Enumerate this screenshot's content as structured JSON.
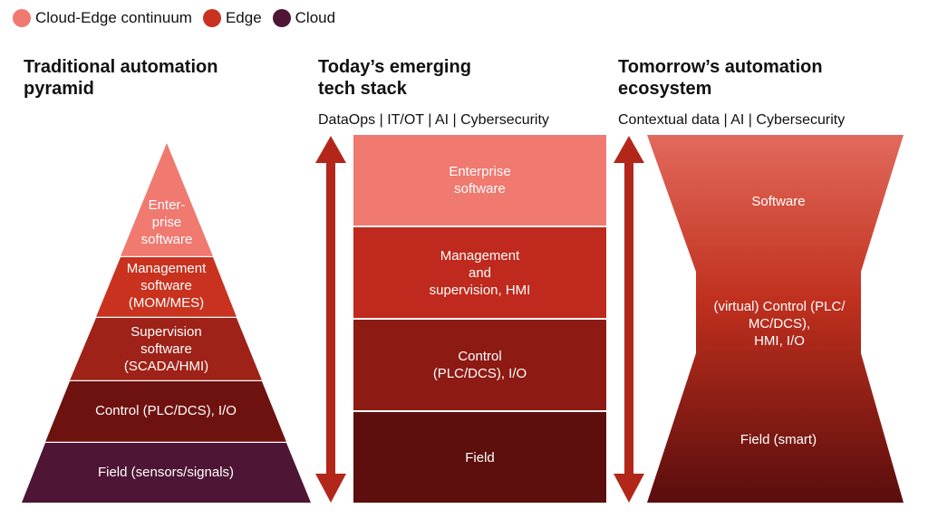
{
  "legend": [
    {
      "label": "Cloud-Edge continuum",
      "color": "#f07970"
    },
    {
      "label": "Edge",
      "color": "#c8321e"
    },
    {
      "label": "Cloud",
      "color": "#4e1535"
    }
  ],
  "columns": {
    "traditional": {
      "title_line1": "Traditional automation",
      "title_line2": "pyramid",
      "layers": [
        "Enter-",
        "prise",
        "software"
      ],
      "management": [
        "Management",
        "software",
        "(MOM/MES)"
      ],
      "supervision": [
        "Supervision",
        "software",
        "(SCADA/HMI)"
      ],
      "control": "Control (PLC/DCS), I/O",
      "field": "Field (sensors/signals)"
    },
    "today": {
      "title_line1": "Today’s emerging",
      "title_line2": "tech stack",
      "subtitle": "DataOps | IT/OT | AI | Cybersecurity",
      "enterprise": [
        "Enterprise",
        "software"
      ],
      "management": [
        "Management",
        "and",
        "supervision, HMI"
      ],
      "control": [
        "Control",
        "(PLC/DCS), I/O"
      ],
      "field": "Field"
    },
    "tomorrow": {
      "title_line1": "Tomorrow’s automation",
      "title_line2": "ecosystem",
      "subtitle": "Contextual data | AI | Cybersecurity",
      "software": "Software",
      "control": [
        "(virtual) Control (PLC/",
        "MC/DCS),",
        "HMI, I/O"
      ],
      "field": "Field (smart)"
    }
  }
}
